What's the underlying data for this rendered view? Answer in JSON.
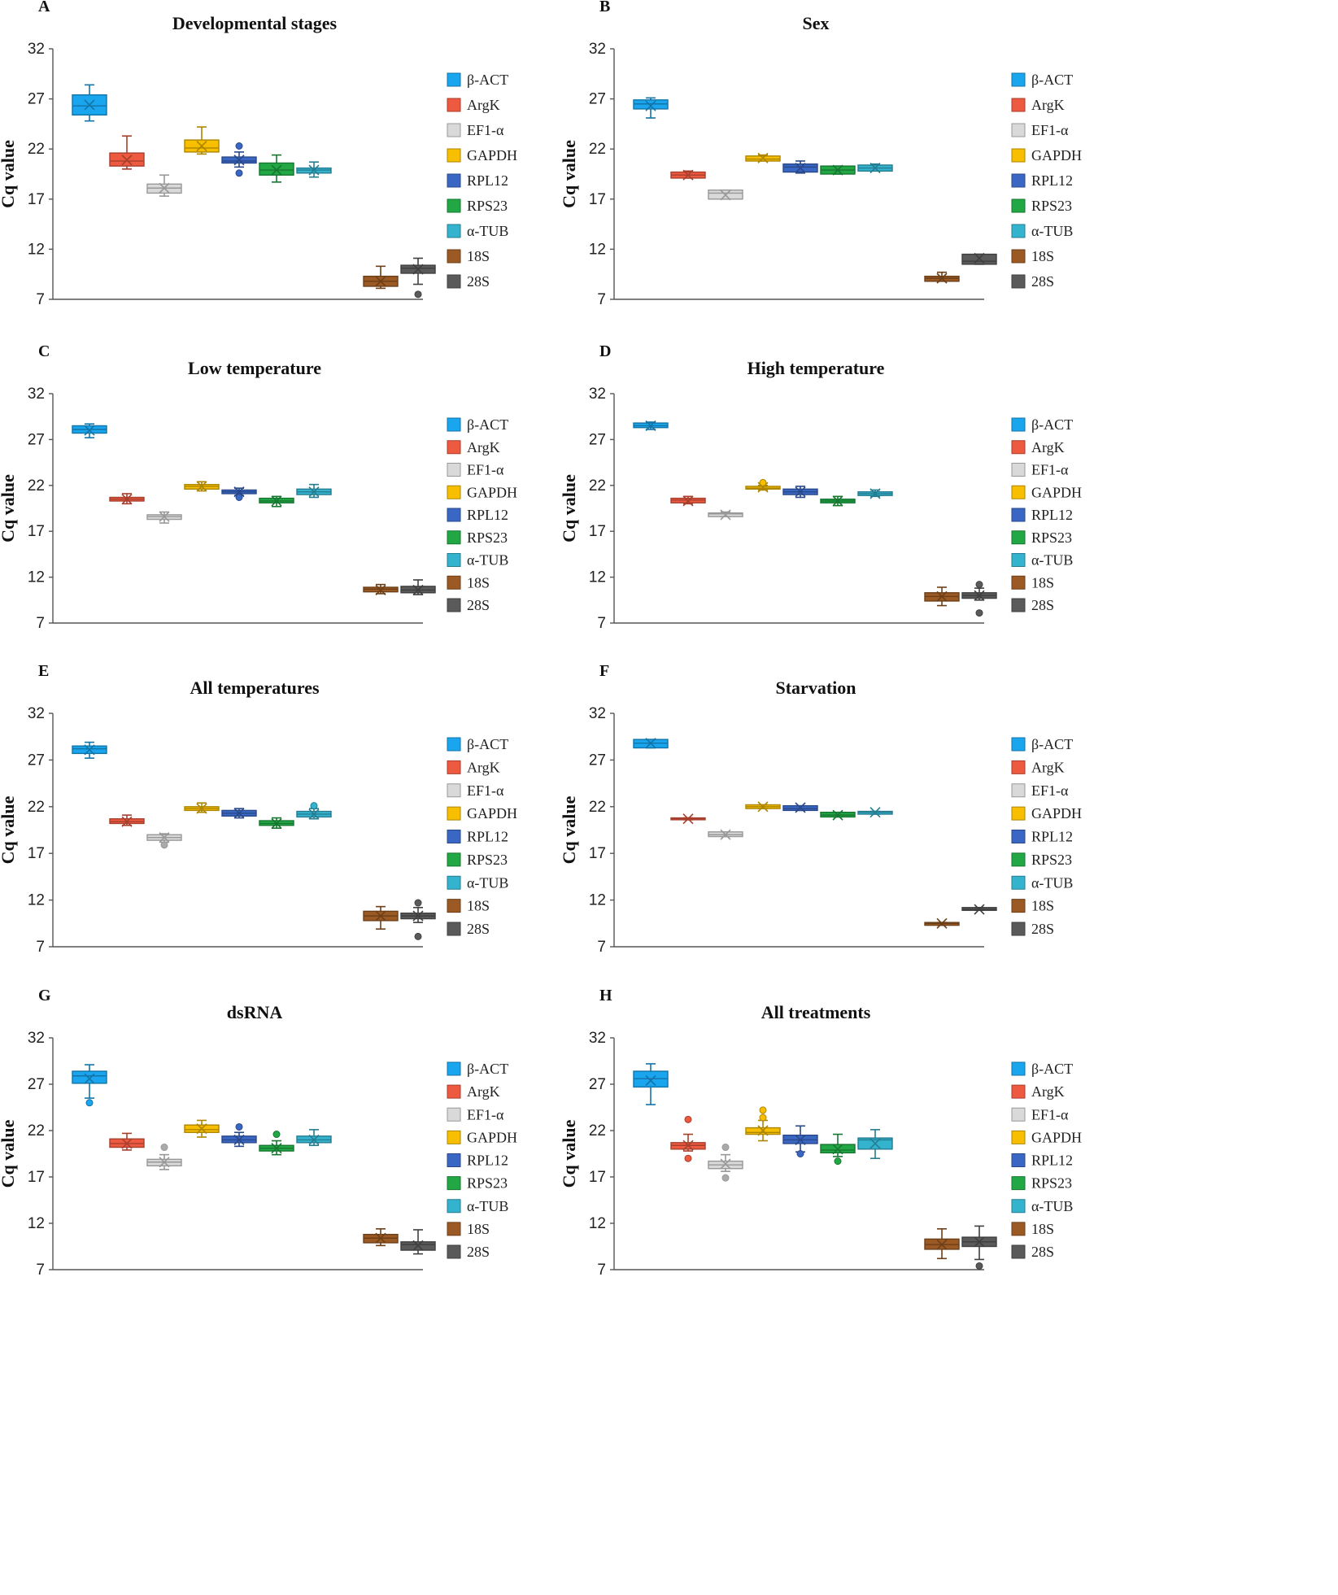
{
  "figure": {
    "ylabel": "Cq value",
    "ylim": [
      7,
      32
    ],
    "yticks": [
      7,
      12,
      17,
      22,
      27,
      32
    ],
    "genes": [
      "β-ACT",
      "ArgK",
      "EF1-α",
      "GAPDH",
      "RPL12",
      "RPS23",
      "α-TUB",
      "18S",
      "28S"
    ],
    "colors": {
      "β-ACT": "#1aa6ee",
      "ArgK": "#ee5a40",
      "EF1-α": "#d9d9d9",
      "GAPDH": "#f7bf00",
      "RPL12": "#3a67c4",
      "RPS23": "#21a845",
      "α-TUB": "#34b3cf",
      "18S": "#9b5a23",
      "28S": "#5a5a5a"
    }
  },
  "chart_data": [
    {
      "type": "box",
      "letter": "A",
      "title": "Developmental stages",
      "ylabel": "Cq value",
      "ylim": [
        7,
        32
      ],
      "boxes": [
        {
          "gene": "β-ACT",
          "whislo": 24.8,
          "q1": 25.4,
          "med": 26.3,
          "q3": 27.4,
          "whishi": 28.4,
          "mean": 26.4,
          "fliers": []
        },
        {
          "gene": "ArgK",
          "whislo": 20.0,
          "q1": 20.3,
          "med": 20.8,
          "q3": 21.6,
          "whishi": 23.3,
          "mean": 20.9,
          "fliers": []
        },
        {
          "gene": "EF1-α",
          "whislo": 17.3,
          "q1": 17.6,
          "med": 18.1,
          "q3": 18.5,
          "whishi": 19.4,
          "mean": 18.1,
          "fliers": []
        },
        {
          "gene": "GAPDH",
          "whislo": 21.5,
          "q1": 21.7,
          "med": 22.1,
          "q3": 22.9,
          "whishi": 24.2,
          "mean": 22.3,
          "fliers": []
        },
        {
          "gene": "RPL12",
          "whislo": 20.2,
          "q1": 20.6,
          "med": 20.8,
          "q3": 21.2,
          "whishi": 21.7,
          "mean": 20.9,
          "fliers": [
            19.6,
            22.3
          ]
        },
        {
          "gene": "RPS23",
          "whislo": 18.7,
          "q1": 19.4,
          "med": 19.9,
          "q3": 20.6,
          "whishi": 21.4,
          "mean": 19.9,
          "fliers": []
        },
        {
          "gene": "α-TUB",
          "whislo": 19.2,
          "q1": 19.6,
          "med": 19.9,
          "q3": 20.1,
          "whishi": 20.7,
          "mean": 19.9,
          "fliers": []
        },
        {
          "gene": "18S",
          "whislo": 8.1,
          "q1": 8.3,
          "med": 8.8,
          "q3": 9.3,
          "whishi": 10.3,
          "mean": 8.8,
          "fliers": []
        },
        {
          "gene": "28S",
          "whislo": 8.5,
          "q1": 9.6,
          "med": 10.1,
          "q3": 10.4,
          "whishi": 11.1,
          "mean": 10.0,
          "fliers": [
            7.5
          ]
        }
      ]
    },
    {
      "type": "box",
      "letter": "B",
      "title": "Sex",
      "ylabel": "Cq value",
      "ylim": [
        7,
        32
      ],
      "boxes": [
        {
          "gene": "β-ACT",
          "whislo": 25.1,
          "q1": 26.0,
          "med": 26.5,
          "q3": 26.9,
          "whishi": 27.1,
          "mean": 26.3,
          "fliers": []
        },
        {
          "gene": "ArgK",
          "whislo": 19.1,
          "q1": 19.1,
          "med": 19.4,
          "q3": 19.7,
          "whishi": 19.8,
          "mean": 19.4,
          "fliers": []
        },
        {
          "gene": "EF1-α",
          "whislo": 17.0,
          "q1": 17.0,
          "med": 17.6,
          "q3": 17.9,
          "whishi": 17.9,
          "mean": 17.4,
          "fliers": []
        },
        {
          "gene": "GAPDH",
          "whislo": 20.8,
          "q1": 20.8,
          "med": 21.0,
          "q3": 21.3,
          "whishi": 21.4,
          "mean": 21.1,
          "fliers": []
        },
        {
          "gene": "RPL12",
          "whislo": 19.6,
          "q1": 19.7,
          "med": 20.2,
          "q3": 20.5,
          "whishi": 20.8,
          "mean": 20.1,
          "fliers": []
        },
        {
          "gene": "RPS23",
          "whislo": 19.5,
          "q1": 19.5,
          "med": 19.9,
          "q3": 20.3,
          "whishi": 20.3,
          "mean": 19.9,
          "fliers": []
        },
        {
          "gene": "α-TUB",
          "whislo": 19.8,
          "q1": 19.8,
          "med": 20.1,
          "q3": 20.4,
          "whishi": 20.5,
          "mean": 20.1,
          "fliers": []
        },
        {
          "gene": "18S",
          "whislo": 8.8,
          "q1": 8.8,
          "med": 9.1,
          "q3": 9.3,
          "whishi": 9.7,
          "mean": 9.1,
          "fliers": []
        },
        {
          "gene": "28S",
          "whislo": 10.5,
          "q1": 10.5,
          "med": 10.8,
          "q3": 11.5,
          "whishi": 11.5,
          "mean": 11.1,
          "fliers": []
        }
      ]
    },
    {
      "type": "box",
      "letter": "C",
      "title": "Low temperature",
      "ylabel": "Cq value",
      "ylim": [
        7,
        32
      ],
      "boxes": [
        {
          "gene": "β-ACT",
          "whislo": 27.2,
          "q1": 27.7,
          "med": 28.1,
          "q3": 28.5,
          "whishi": 28.7,
          "mean": 28.0,
          "fliers": []
        },
        {
          "gene": "ArgK",
          "whislo": 20.0,
          "q1": 20.3,
          "med": 20.5,
          "q3": 20.7,
          "whishi": 21.1,
          "mean": 20.5,
          "fliers": []
        },
        {
          "gene": "EF1-α",
          "whislo": 17.9,
          "q1": 18.3,
          "med": 18.6,
          "q3": 18.8,
          "whishi": 19.1,
          "mean": 18.6,
          "fliers": []
        },
        {
          "gene": "GAPDH",
          "whislo": 21.4,
          "q1": 21.6,
          "med": 21.9,
          "q3": 22.1,
          "whishi": 22.4,
          "mean": 21.9,
          "fliers": []
        },
        {
          "gene": "RPL12",
          "whislo": 20.9,
          "q1": 21.1,
          "med": 21.3,
          "q3": 21.5,
          "whishi": 21.7,
          "mean": 21.3,
          "fliers": [
            20.7
          ]
        },
        {
          "gene": "RPS23",
          "whislo": 19.7,
          "q1": 20.1,
          "med": 20.3,
          "q3": 20.6,
          "whishi": 20.8,
          "mean": 20.3,
          "fliers": []
        },
        {
          "gene": "α-TUB",
          "whislo": 20.7,
          "q1": 21.0,
          "med": 21.3,
          "q3": 21.6,
          "whishi": 22.1,
          "mean": 21.3,
          "fliers": []
        },
        {
          "gene": "18S",
          "whislo": 10.2,
          "q1": 10.4,
          "med": 10.7,
          "q3": 10.9,
          "whishi": 11.2,
          "mean": 10.6,
          "fliers": []
        },
        {
          "gene": "28S",
          "whislo": 10.1,
          "q1": 10.3,
          "med": 10.6,
          "q3": 11.0,
          "whishi": 11.7,
          "mean": 10.6,
          "fliers": []
        }
      ]
    },
    {
      "type": "box",
      "letter": "D",
      "title": "High temperature",
      "ylabel": "Cq value",
      "ylim": [
        7,
        32
      ],
      "boxes": [
        {
          "gene": "β-ACT",
          "whislo": 28.1,
          "q1": 28.3,
          "med": 28.5,
          "q3": 28.8,
          "whishi": 28.9,
          "mean": 28.5,
          "fliers": []
        },
        {
          "gene": "ArgK",
          "whislo": 20.0,
          "q1": 20.1,
          "med": 20.4,
          "q3": 20.6,
          "whishi": 20.8,
          "mean": 20.3,
          "fliers": []
        },
        {
          "gene": "EF1-α",
          "whislo": 18.6,
          "q1": 18.6,
          "med": 18.9,
          "q3": 19.0,
          "whishi": 19.1,
          "mean": 18.8,
          "fliers": []
        },
        {
          "gene": "GAPDH",
          "whislo": 21.5,
          "q1": 21.6,
          "med": 21.7,
          "q3": 21.9,
          "whishi": 22.0,
          "mean": 21.8,
          "fliers": [
            22.3
          ]
        },
        {
          "gene": "RPL12",
          "whislo": 20.7,
          "q1": 21.0,
          "med": 21.3,
          "q3": 21.6,
          "whishi": 21.9,
          "mean": 21.3,
          "fliers": []
        },
        {
          "gene": "RPS23",
          "whislo": 19.8,
          "q1": 20.1,
          "med": 20.3,
          "q3": 20.5,
          "whishi": 20.8,
          "mean": 20.3,
          "fliers": []
        },
        {
          "gene": "α-TUB",
          "whislo": 20.8,
          "q1": 20.9,
          "med": 21.1,
          "q3": 21.3,
          "whishi": 21.5,
          "mean": 21.1,
          "fliers": []
        },
        {
          "gene": "18S",
          "whislo": 8.9,
          "q1": 9.4,
          "med": 9.9,
          "q3": 10.3,
          "whishi": 10.9,
          "mean": 9.9,
          "fliers": []
        },
        {
          "gene": "28S",
          "whislo": 9.5,
          "q1": 9.7,
          "med": 10.0,
          "q3": 10.3,
          "whishi": 10.8,
          "mean": 10.0,
          "fliers": [
            8.1,
            11.2
          ]
        }
      ]
    },
    {
      "type": "box",
      "letter": "E",
      "title": "All temperatures",
      "ylabel": "Cq value",
      "ylim": [
        7,
        32
      ],
      "boxes": [
        {
          "gene": "β-ACT",
          "whislo": 27.2,
          "q1": 27.7,
          "med": 28.2,
          "q3": 28.5,
          "whishi": 28.9,
          "mean": 28.1,
          "fliers": []
        },
        {
          "gene": "ArgK",
          "whislo": 20.0,
          "q1": 20.2,
          "med": 20.4,
          "q3": 20.7,
          "whishi": 21.1,
          "mean": 20.4,
          "fliers": []
        },
        {
          "gene": "EF1-α",
          "whislo": 18.2,
          "q1": 18.4,
          "med": 18.7,
          "q3": 19.0,
          "whishi": 19.1,
          "mean": 18.7,
          "fliers": [
            17.9
          ]
        },
        {
          "gene": "GAPDH",
          "whislo": 21.4,
          "q1": 21.6,
          "med": 21.8,
          "q3": 22.0,
          "whishi": 22.4,
          "mean": 21.8,
          "fliers": []
        },
        {
          "gene": "RPL12",
          "whislo": 20.8,
          "q1": 21.0,
          "med": 21.3,
          "q3": 21.6,
          "whishi": 21.8,
          "mean": 21.3,
          "fliers": []
        },
        {
          "gene": "RPS23",
          "whislo": 19.7,
          "q1": 20.0,
          "med": 20.2,
          "q3": 20.5,
          "whishi": 20.8,
          "mean": 20.2,
          "fliers": []
        },
        {
          "gene": "α-TUB",
          "whislo": 20.7,
          "q1": 20.9,
          "med": 21.2,
          "q3": 21.5,
          "whishi": 21.8,
          "mean": 21.2,
          "fliers": [
            22.1
          ]
        },
        {
          "gene": "18S",
          "whislo": 8.9,
          "q1": 9.8,
          "med": 10.3,
          "q3": 10.8,
          "whishi": 11.3,
          "mean": 10.3,
          "fliers": []
        },
        {
          "gene": "28S",
          "whislo": 9.6,
          "q1": 10.0,
          "med": 10.3,
          "q3": 10.6,
          "whishi": 11.2,
          "mean": 10.3,
          "fliers": [
            8.1,
            11.7
          ]
        }
      ]
    },
    {
      "type": "box",
      "letter": "F",
      "title": "Starvation",
      "ylabel": "Cq value",
      "ylim": [
        7,
        32
      ],
      "boxes": [
        {
          "gene": "β-ACT",
          "whislo": 28.3,
          "q1": 28.3,
          "med": 28.8,
          "q3": 29.2,
          "whishi": 29.2,
          "mean": 28.8,
          "fliers": []
        },
        {
          "gene": "ArgK",
          "whislo": 20.6,
          "q1": 20.6,
          "med": 20.7,
          "q3": 20.8,
          "whishi": 20.8,
          "mean": 20.7,
          "fliers": []
        },
        {
          "gene": "EF1-α",
          "whislo": 18.8,
          "q1": 18.8,
          "med": 19.0,
          "q3": 19.3,
          "whishi": 19.3,
          "mean": 19.0,
          "fliers": []
        },
        {
          "gene": "GAPDH",
          "whislo": 21.8,
          "q1": 21.8,
          "med": 22.0,
          "q3": 22.2,
          "whishi": 22.2,
          "mean": 22.0,
          "fliers": []
        },
        {
          "gene": "RPL12",
          "whislo": 21.6,
          "q1": 21.6,
          "med": 21.8,
          "q3": 22.1,
          "whishi": 22.1,
          "mean": 21.9,
          "fliers": []
        },
        {
          "gene": "RPS23",
          "whislo": 20.9,
          "q1": 20.9,
          "med": 21.1,
          "q3": 21.4,
          "whishi": 21.4,
          "mean": 21.1,
          "fliers": []
        },
        {
          "gene": "α-TUB",
          "whislo": 21.2,
          "q1": 21.2,
          "med": 21.4,
          "q3": 21.5,
          "whishi": 21.5,
          "mean": 21.4,
          "fliers": []
        },
        {
          "gene": "18S",
          "whislo": 9.3,
          "q1": 9.3,
          "med": 9.5,
          "q3": 9.6,
          "whishi": 9.6,
          "mean": 9.5,
          "fliers": []
        },
        {
          "gene": "28S",
          "whislo": 10.9,
          "q1": 10.9,
          "med": 11.0,
          "q3": 11.2,
          "whishi": 11.2,
          "mean": 11.0,
          "fliers": []
        }
      ]
    },
    {
      "type": "box",
      "letter": "G",
      "title": "dsRNA",
      "ylabel": "Cq value",
      "ylim": [
        7,
        32
      ],
      "boxes": [
        {
          "gene": "β-ACT",
          "whislo": 25.5,
          "q1": 27.1,
          "med": 27.9,
          "q3": 28.4,
          "whishi": 29.1,
          "mean": 27.6,
          "fliers": [
            25.0
          ]
        },
        {
          "gene": "ArgK",
          "whislo": 19.9,
          "q1": 20.2,
          "med": 20.6,
          "q3": 21.1,
          "whishi": 21.7,
          "mean": 20.6,
          "fliers": []
        },
        {
          "gene": "EF1-α",
          "whislo": 17.8,
          "q1": 18.2,
          "med": 18.6,
          "q3": 18.9,
          "whishi": 19.4,
          "mean": 18.6,
          "fliers": [
            20.2
          ]
        },
        {
          "gene": "GAPDH",
          "whislo": 21.3,
          "q1": 21.8,
          "med": 22.1,
          "q3": 22.6,
          "whishi": 23.1,
          "mean": 22.2,
          "fliers": []
        },
        {
          "gene": "RPL12",
          "whislo": 20.3,
          "q1": 20.7,
          "med": 21.0,
          "q3": 21.4,
          "whishi": 21.8,
          "mean": 21.0,
          "fliers": [
            22.4
          ]
        },
        {
          "gene": "RPS23",
          "whislo": 19.4,
          "q1": 19.8,
          "med": 20.1,
          "q3": 20.4,
          "whishi": 20.9,
          "mean": 20.1,
          "fliers": [
            21.6
          ]
        },
        {
          "gene": "α-TUB",
          "whislo": 20.4,
          "q1": 20.7,
          "med": 21.0,
          "q3": 21.4,
          "whishi": 22.1,
          "mean": 21.0,
          "fliers": []
        },
        {
          "gene": "18S",
          "whislo": 9.6,
          "q1": 9.9,
          "med": 10.4,
          "q3": 10.8,
          "whishi": 11.4,
          "mean": 10.4,
          "fliers": []
        },
        {
          "gene": "28S",
          "whislo": 8.7,
          "q1": 9.1,
          "med": 9.7,
          "q3": 10.0,
          "whishi": 11.3,
          "mean": 9.6,
          "fliers": []
        }
      ]
    },
    {
      "type": "box",
      "letter": "H",
      "title": "All treatments",
      "ylabel": "Cq value",
      "ylim": [
        7,
        32
      ],
      "boxes": [
        {
          "gene": "β-ACT",
          "whislo": 24.8,
          "q1": 26.7,
          "med": 27.6,
          "q3": 28.4,
          "whishi": 29.2,
          "mean": 27.4,
          "fliers": []
        },
        {
          "gene": "ArgK",
          "whislo": 19.8,
          "q1": 20.0,
          "med": 20.4,
          "q3": 20.7,
          "whishi": 21.6,
          "mean": 20.4,
          "fliers": [
            19.0,
            23.2
          ]
        },
        {
          "gene": "EF1-α",
          "whislo": 17.6,
          "q1": 17.9,
          "med": 18.3,
          "q3": 18.7,
          "whishi": 19.4,
          "mean": 18.4,
          "fliers": [
            16.9,
            20.2
          ]
        },
        {
          "gene": "GAPDH",
          "whislo": 20.9,
          "q1": 21.6,
          "med": 21.8,
          "q3": 22.3,
          "whishi": 23.1,
          "mean": 22.0,
          "fliers": [
            23.4,
            24.2
          ]
        },
        {
          "gene": "RPL12",
          "whislo": 19.7,
          "q1": 20.6,
          "med": 21.0,
          "q3": 21.5,
          "whishi": 22.5,
          "mean": 21.0,
          "fliers": [
            19.5
          ]
        },
        {
          "gene": "RPS23",
          "whislo": 19.2,
          "q1": 19.6,
          "med": 19.9,
          "q3": 20.5,
          "whishi": 21.6,
          "mean": 20.0,
          "fliers": [
            18.7
          ]
        },
        {
          "gene": "α-TUB",
          "whislo": 19.0,
          "q1": 20.0,
          "med": 21.0,
          "q3": 21.2,
          "whishi": 22.1,
          "mean": 20.6,
          "fliers": []
        },
        {
          "gene": "18S",
          "whislo": 8.2,
          "q1": 9.2,
          "med": 9.7,
          "q3": 10.3,
          "whishi": 11.4,
          "mean": 9.7,
          "fliers": []
        },
        {
          "gene": "28S",
          "whislo": 8.1,
          "q1": 9.5,
          "med": 10.0,
          "q3": 10.5,
          "whishi": 11.7,
          "mean": 10.0,
          "fliers": [
            7.4
          ]
        }
      ]
    }
  ]
}
